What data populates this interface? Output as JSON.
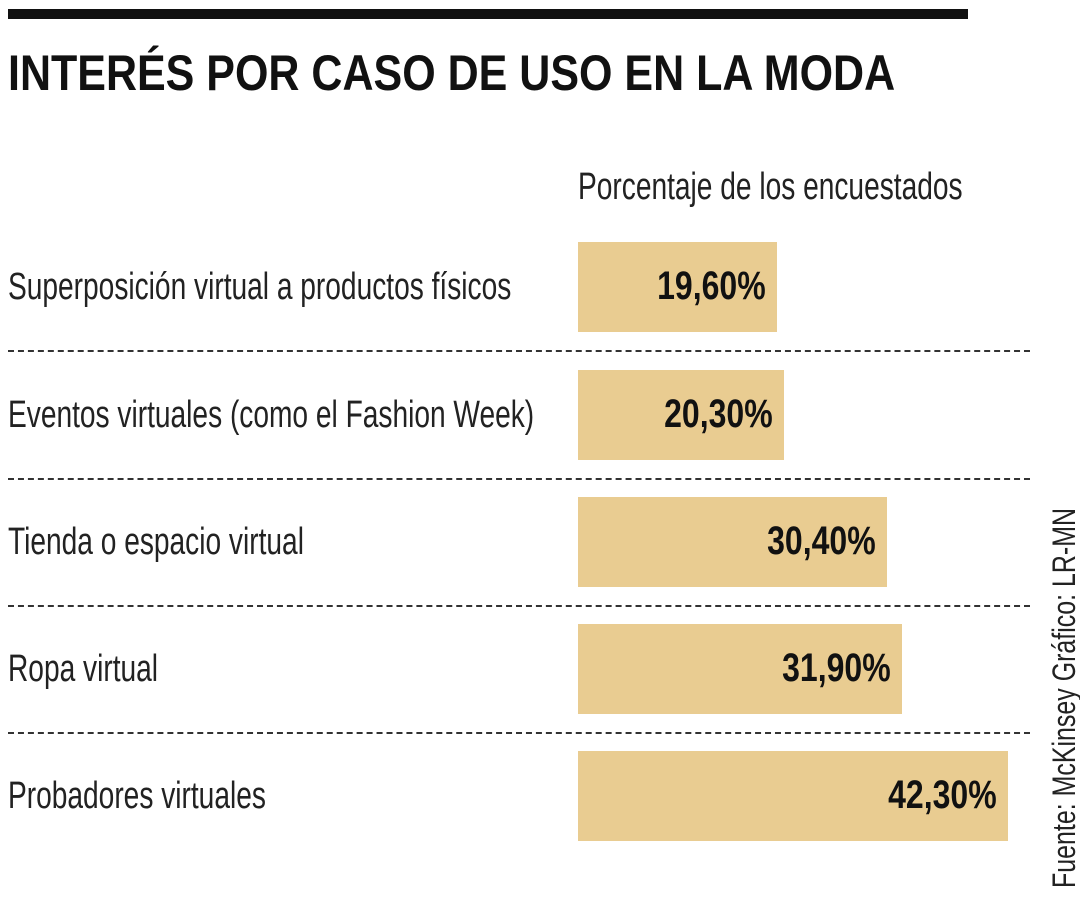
{
  "title": "INTERÉS POR CASO DE USO EN LA MODA",
  "source": "Fuente: McKinsey  Gráfico: LR-MN",
  "colors": {
    "bar": "#E9CC91",
    "text": "#111111",
    "rule": "#111111"
  },
  "chart_data": {
    "type": "bar",
    "orientation": "horizontal",
    "subtitle": "Porcentaje de los encuestados",
    "categories": [
      "Superposición virtual a productos físicos",
      "Eventos virtuales (como el Fashion Week)",
      "Tienda o espacio virtual",
      "Ropa virtual",
      "Probadores virtuales"
    ],
    "values": [
      19.6,
      20.3,
      30.4,
      31.9,
      42.3
    ],
    "labels": [
      "19,60%",
      "20,30%",
      "30,40%",
      "31,90%",
      "42,30%"
    ],
    "unit": "%",
    "grid": false
  }
}
